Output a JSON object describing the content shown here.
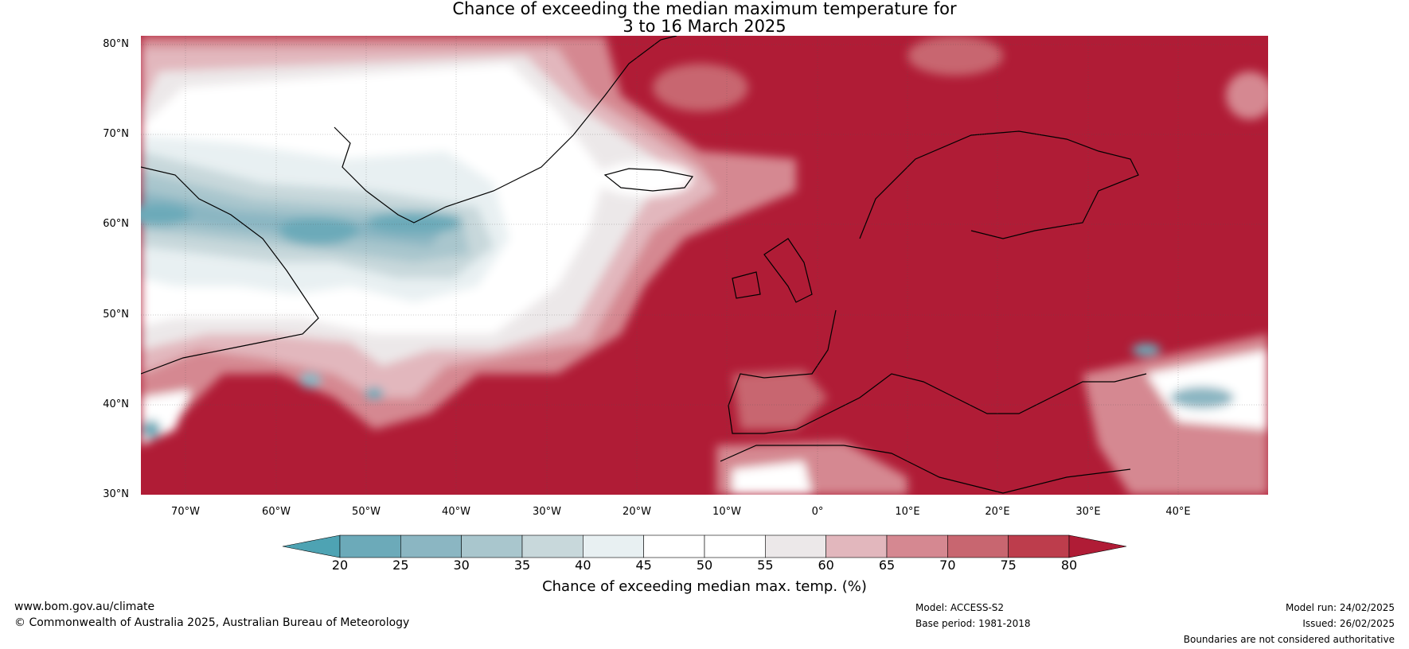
{
  "title": {
    "line1": "Chance of exceeding the median maximum temperature for",
    "line2": "3 to 16 March 2025"
  },
  "map": {
    "lat_range": [
      30,
      81
    ],
    "lon_range": [
      -75,
      50
    ],
    "lat_labels": [
      "80°N",
      "70°N",
      "60°N",
      "50°N",
      "40°N",
      "30°N"
    ],
    "lon_labels": [
      "70°W",
      "60°W",
      "50°W",
      "40°W",
      "30°W",
      "20°W",
      "10°W",
      "0°",
      "10°E",
      "20°E",
      "30°E",
      "40°E"
    ],
    "background_color": "#b01c36",
    "coastline_color": "#000000",
    "border_color": "#7f7f7f"
  },
  "colorbar": {
    "ticks": [
      "20",
      "25",
      "30",
      "35",
      "40",
      "45",
      "50",
      "55",
      "60",
      "65",
      "70",
      "75",
      "80"
    ],
    "colors": [
      "#4ea3b3",
      "#6caab9",
      "#8bb6c2",
      "#a9c6cd",
      "#c8d8db",
      "#e8f0f2",
      "#ffffff",
      "#ffffff",
      "#ece8e9",
      "#e2b7bd",
      "#d58891",
      "#c86670",
      "#bd3d4c",
      "#b01c36"
    ],
    "label": "Chance of exceeding median max. temp. (%)"
  },
  "footer": {
    "website": "www.bom.gov.au/climate",
    "copyright": "© Commonwealth of Australia 2025, Australian Bureau of Meteorology",
    "model": "Model: ACCESS-S2",
    "base_period": "Base period: 1981-2018",
    "model_run": "Model run: 24/02/2025",
    "issued": "Issued: 26/02/2025",
    "disclaimer": "Boundaries are not considered authoritative"
  }
}
